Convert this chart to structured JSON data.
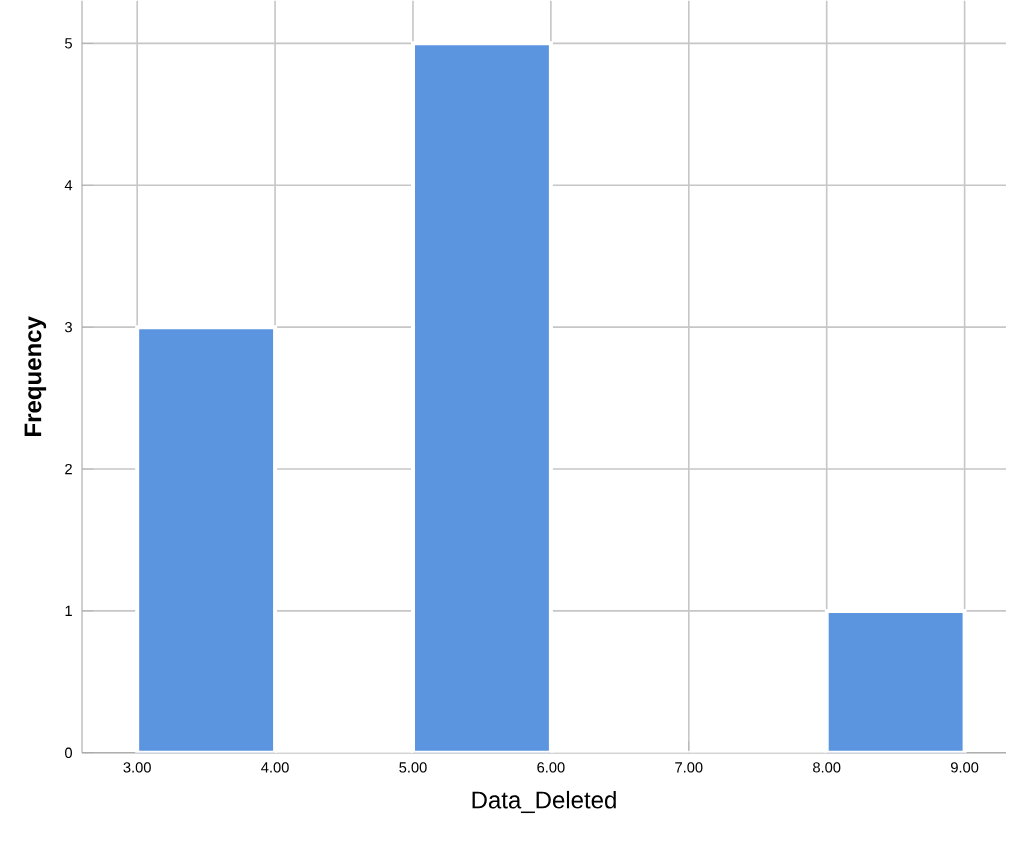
{
  "chart_data": {
    "type": "histogram",
    "xlabel": "Data_Deleted",
    "ylabel": "Frequency",
    "bins": [
      3,
      4,
      5,
      6,
      7,
      8,
      9
    ],
    "values": [
      3,
      0,
      5,
      0,
      0,
      1
    ],
    "color": "#5b95e0",
    "xlim": [
      2.6,
      9.3
    ],
    "ylim": [
      0,
      5.3
    ],
    "xticks": [
      {
        "value": 3,
        "label": "3.00"
      },
      {
        "value": 4,
        "label": "4.00"
      },
      {
        "value": 5,
        "label": "5.00"
      },
      {
        "value": 6,
        "label": "6.00"
      },
      {
        "value": 7,
        "label": "7.00"
      },
      {
        "value": 8,
        "label": "8.00"
      },
      {
        "value": 9,
        "label": "9.00"
      }
    ],
    "yticks": [
      0,
      1,
      2,
      3,
      4,
      5
    ],
    "grid": true
  }
}
